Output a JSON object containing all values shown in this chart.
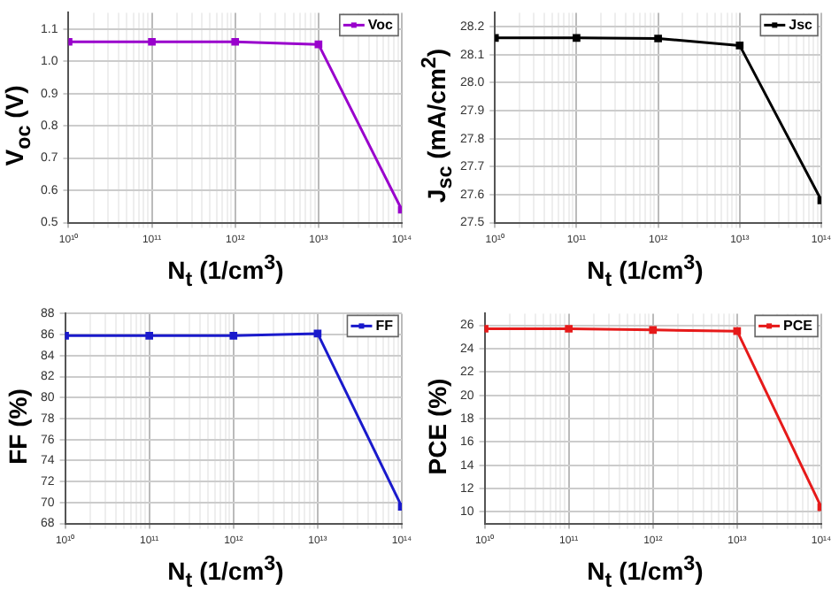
{
  "chart_data": [
    {
      "type": "line",
      "xlabel": "N$_{t}$ (1/cm$^{3}$)",
      "ylabel": "V$_{oc}$ (V)",
      "x": [
        10000000000.0,
        100000000000.0,
        1000000000000.0,
        10000000000000.0,
        100000000000000.0
      ],
      "log": "x",
      "grid": true,
      "legend": "top right",
      "marker": "square",
      "line_style": "solid",
      "series": [
        {
          "name": "Voc",
          "color": "#9900cc",
          "values": [
            1.06,
            1.06,
            1.06,
            1.052,
            0.54
          ]
        }
      ],
      "xlim": [
        10000000000.0,
        100000000000000.0
      ],
      "xticks": [
        {
          "value": 10000000000.0,
          "label": "10¹⁰"
        },
        {
          "value": 100000000000.0,
          "label": "10¹¹"
        },
        {
          "value": 1000000000000.0,
          "label": "10¹²"
        },
        {
          "value": 10000000000000.0,
          "label": "10¹³"
        },
        {
          "value": 100000000000000.0,
          "label": "10¹⁴"
        }
      ],
      "ylim": [
        0.5,
        1.15
      ],
      "yticks": [
        {
          "value": 0.5,
          "label": "0.5"
        },
        {
          "value": 0.6,
          "label": "0.6"
        },
        {
          "value": 0.7,
          "label": "0.7"
        },
        {
          "value": 0.8,
          "label": "0.8"
        },
        {
          "value": 0.9,
          "label": "0.9"
        },
        {
          "value": 1.0,
          "label": "1.0"
        },
        {
          "value": 1.1,
          "label": "1.1"
        }
      ]
    },
    {
      "type": "line",
      "xlabel": "N$_{t}$ (1/cm$^{3}$)",
      "ylabel": "J$_{sc}$ (mA/cm$^{2}$)",
      "x": [
        10000000000.0,
        100000000000.0,
        1000000000000.0,
        10000000000000.0,
        100000000000000.0
      ],
      "log": "x",
      "grid": true,
      "legend": "top right",
      "marker": "square",
      "line_style": "solid",
      "series": [
        {
          "name": "Jsc",
          "color": "#000000",
          "values": [
            28.16,
            28.16,
            28.158,
            28.133,
            27.58
          ]
        }
      ],
      "xlim": [
        10000000000.0,
        100000000000000.0
      ],
      "xticks": [
        {
          "value": 10000000000.0,
          "label": "10¹⁰"
        },
        {
          "value": 100000000000.0,
          "label": "10¹¹"
        },
        {
          "value": 1000000000000.0,
          "label": "10¹²"
        },
        {
          "value": 10000000000000.0,
          "label": "10¹³"
        },
        {
          "value": 100000000000000.0,
          "label": "10¹⁴"
        }
      ],
      "ylim": [
        27.5,
        28.25
      ],
      "yticks": [
        {
          "value": 27.5,
          "label": "27.5"
        },
        {
          "value": 27.6,
          "label": "27.6"
        },
        {
          "value": 27.7,
          "label": "27.7"
        },
        {
          "value": 27.8,
          "label": "27.8"
        },
        {
          "value": 27.9,
          "label": "27.9"
        },
        {
          "value": 28.0,
          "label": "28.0"
        },
        {
          "value": 28.1,
          "label": "28.1"
        },
        {
          "value": 28.2,
          "label": "28.2"
        }
      ]
    },
    {
      "type": "line",
      "xlabel": "N$_{t}$ (1/cm$^{3}$)",
      "ylabel": "FF (%)",
      "x": [
        10000000000.0,
        100000000000.0,
        1000000000000.0,
        10000000000000.0,
        100000000000000.0
      ],
      "log": "x",
      "grid": true,
      "legend": "top right",
      "marker": "square",
      "line_style": "solid",
      "series": [
        {
          "name": "FF",
          "color": "#1a1acc",
          "values": [
            85.9,
            85.9,
            85.9,
            86.1,
            69.6
          ]
        }
      ],
      "xlim": [
        10000000000.0,
        100000000000000.0
      ],
      "xticks": [
        {
          "value": 10000000000.0,
          "label": "10¹⁰"
        },
        {
          "value": 100000000000.0,
          "label": "10¹¹"
        },
        {
          "value": 1000000000000.0,
          "label": "10¹²"
        },
        {
          "value": 10000000000000.0,
          "label": "10¹³"
        },
        {
          "value": 100000000000000.0,
          "label": "10¹⁴"
        }
      ],
      "ylim": [
        68,
        88
      ],
      "yticks": [
        68,
        70,
        72,
        74,
        76,
        78,
        80,
        82,
        84,
        86,
        88
      ]
    },
    {
      "type": "line",
      "xlabel": "N$_{t}$ (1/cm$^{3}$)",
      "ylabel": "PCE (%)",
      "x": [
        10000000000.0,
        100000000000.0,
        1000000000000.0,
        10000000000000.0,
        100000000000000.0
      ],
      "log": "x",
      "grid": true,
      "legend": "top right",
      "marker": "square",
      "line_style": "solid",
      "series": [
        {
          "name": "PCE",
          "color": "#e61a1a",
          "values": [
            25.7,
            25.7,
            25.6,
            25.5,
            10.4
          ]
        }
      ],
      "xlim": [
        10000000000.0,
        100000000000000.0
      ],
      "xticks": [
        {
          "value": 10000000000.0,
          "label": "10¹⁰"
        },
        {
          "value": 100000000000.0,
          "label": "10¹¹"
        },
        {
          "value": 1000000000000.0,
          "label": "10¹²"
        },
        {
          "value": 10000000000000.0,
          "label": "10¹³"
        },
        {
          "value": 100000000000000.0,
          "label": "10¹⁴"
        }
      ],
      "ylim": [
        9,
        27
      ],
      "yticks": [
        10,
        12,
        14,
        16,
        18,
        20,
        22,
        24,
        26
      ]
    }
  ]
}
